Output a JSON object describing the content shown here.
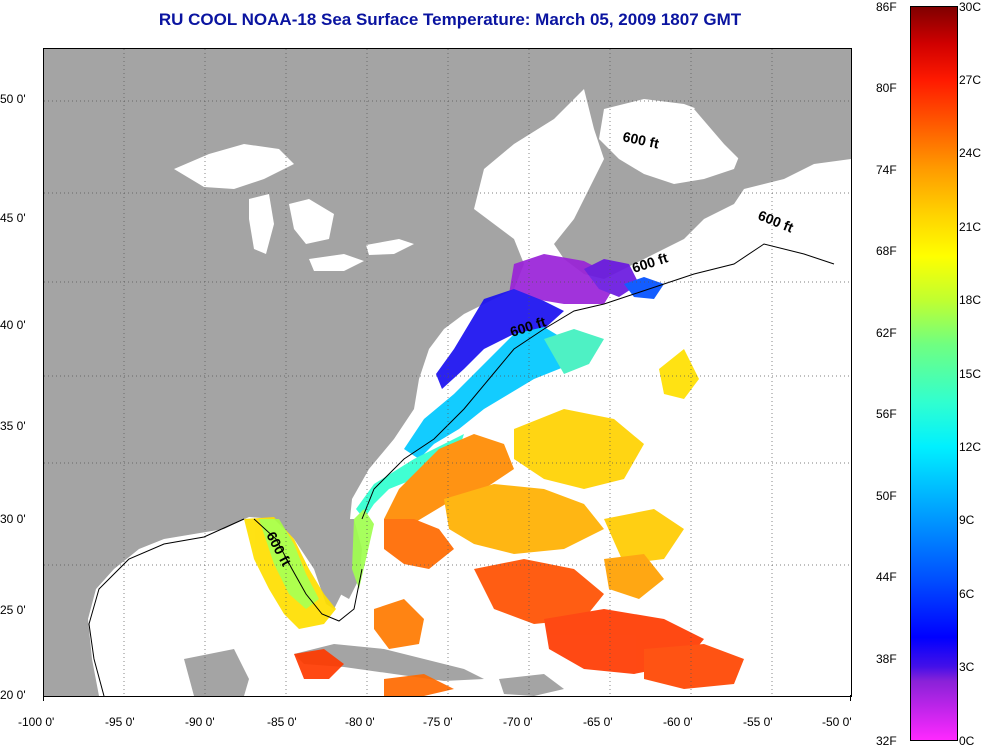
{
  "title": "RU COOL  NOAA-18  Sea Surface Temperature:  March 05, 2009 1807 GMT",
  "x_ticks": [
    "-100 0'",
    "-95 0'",
    "-90 0'",
    "-85 0'",
    "-80 0'",
    "-75 0'",
    "-70 0'",
    "-65 0'",
    "-60 0'",
    "-55 0'",
    "-50 0'"
  ],
  "y_ticks": [
    "50 0'",
    "45 0'",
    "40 0'",
    "35 0'",
    "30 0'",
    "25 0'",
    "20 0'"
  ],
  "contour_labels": [
    "600 ft",
    "600 ft",
    "600 ft",
    "600 ft",
    "600 ft"
  ],
  "colorbar": {
    "fahrenheit": [
      "86F",
      "80F",
      "74F",
      "68F",
      "62F",
      "56F",
      "50F",
      "44F",
      "38F",
      "32F"
    ],
    "celsius": [
      "30C",
      "27C",
      "24C",
      "21C",
      "18C",
      "15C",
      "12C",
      "9C",
      "6C",
      "3C",
      "0C"
    ]
  },
  "colors": {
    "land": "#a4a4a4",
    "water": "#ffffff",
    "title": "#0a14a0"
  }
}
